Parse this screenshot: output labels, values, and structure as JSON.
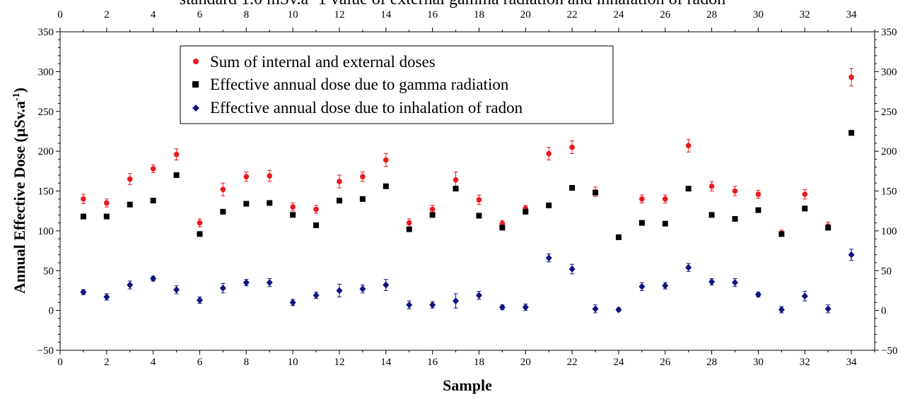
{
  "chart_data": {
    "type": "scatter",
    "title_fragment": "standard 1.0 mSv.a−1 value of external gamma radiation and inhalation of radon",
    "xlabel": "Sample",
    "ylabel": "Annual Effective Dose (µSv.a",
    "ylabel_sup": "-1",
    "ylabel_close": ")",
    "xlim": [
      0,
      35
    ],
    "ylim": [
      -50,
      350
    ],
    "x_ticks": [
      0,
      2,
      4,
      6,
      8,
      10,
      12,
      14,
      16,
      18,
      20,
      22,
      24,
      26,
      28,
      30,
      32,
      34
    ],
    "y_ticks": [
      -50,
      0,
      50,
      100,
      150,
      200,
      250,
      300,
      350
    ],
    "grid": false,
    "legend_position": "top-left",
    "x": [
      1,
      2,
      3,
      4,
      5,
      6,
      7,
      8,
      9,
      10,
      11,
      12,
      13,
      14,
      15,
      16,
      17,
      18,
      19,
      20,
      21,
      22,
      23,
      24,
      25,
      26,
      27,
      28,
      29,
      30,
      31,
      32,
      33,
      34
    ],
    "series": [
      {
        "name": "Sum of internal and external doses",
        "marker": "circle",
        "color": "#e8191e",
        "values": [
          140,
          135,
          165,
          178,
          196,
          110,
          152,
          168,
          169,
          130,
          127,
          162,
          168,
          189,
          110,
          127,
          164,
          139,
          109,
          128,
          197,
          205,
          149,
          92,
          140,
          140,
          207,
          156,
          150,
          146,
          97,
          146,
          106,
          293
        ],
        "errors": [
          6,
          5,
          7,
          5,
          7,
          5,
          8,
          6,
          7,
          5,
          5,
          8,
          6,
          8,
          5,
          5,
          10,
          6,
          4,
          4,
          8,
          8,
          6,
          3,
          5,
          5,
          8,
          6,
          6,
          5,
          4,
          6,
          5,
          11
        ]
      },
      {
        "name": "Effective annual dose due to gamma radiation",
        "marker": "square",
        "color": "#000000",
        "values": [
          118,
          118,
          133,
          138,
          170,
          96,
          124,
          134,
          135,
          120,
          107,
          138,
          140,
          156,
          102,
          120,
          153,
          119,
          104,
          124,
          132,
          154,
          148,
          92,
          110,
          109,
          153,
          120,
          115,
          126,
          96,
          128,
          104,
          223
        ],
        "errors": [
          0,
          0,
          0,
          0,
          0,
          0,
          0,
          0,
          0,
          0,
          0,
          0,
          0,
          0,
          0,
          0,
          0,
          0,
          0,
          0,
          0,
          0,
          0,
          0,
          0,
          0,
          0,
          0,
          0,
          0,
          0,
          0,
          0,
          3
        ]
      },
      {
        "name": "Effective annual dose due to inhalation of radon",
        "marker": "diamond",
        "color": "#0d137f",
        "values": [
          23,
          17,
          32,
          40,
          26,
          13,
          28,
          35,
          35,
          10,
          19,
          25,
          27,
          32,
          7,
          7,
          12,
          19,
          4,
          4,
          66,
          52,
          2,
          1,
          30,
          31,
          54,
          36,
          35,
          20,
          1,
          18,
          2,
          70
        ],
        "errors": [
          3,
          4,
          5,
          3,
          5,
          4,
          6,
          4,
          5,
          4,
          4,
          8,
          5,
          7,
          5,
          4,
          9,
          5,
          3,
          4,
          5,
          6,
          5,
          2,
          5,
          4,
          5,
          4,
          5,
          3,
          4,
          6,
          5,
          7
        ]
      }
    ]
  }
}
